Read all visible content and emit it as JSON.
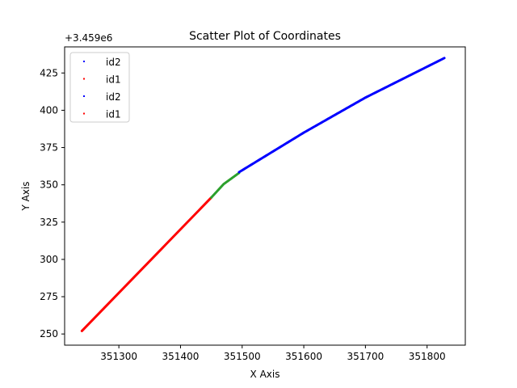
{
  "chart_data": {
    "type": "scatter",
    "title": "Scatter Plot of Coordinates",
    "xlabel": "X Axis",
    "ylabel": "Y Axis",
    "y_offset_label": "+3.459e6",
    "y_offset": 3459000,
    "xlim": [
      351212,
      351862
    ],
    "ylim": [
      242.5,
      442.5
    ],
    "xticks": [
      351300,
      351400,
      351500,
      351600,
      351700,
      351800
    ],
    "xtick_labels": [
      "351300",
      "351400",
      "351500",
      "351600",
      "351700",
      "351800"
    ],
    "yticks": [
      250,
      275,
      300,
      325,
      350,
      375,
      400,
      425
    ],
    "ytick_labels": [
      "250",
      "275",
      "300",
      "325",
      "350",
      "375",
      "400",
      "425"
    ],
    "grid": false,
    "legend_position": "top-left",
    "legend": [
      {
        "label": "id2",
        "color": "#0000ff"
      },
      {
        "label": "id1",
        "color": "#ff0000"
      },
      {
        "label": "id2",
        "color": "#0000ff"
      },
      {
        "label": "id1",
        "color": "#ff0000"
      }
    ],
    "series": [
      {
        "color": "#ff0000",
        "x": [
          351240,
          351270,
          351300,
          351330,
          351360,
          351390,
          351420,
          351450
        ],
        "y": [
          252,
          268.2,
          284.5,
          300.7,
          316.9,
          333.1,
          349.3,
          341.2
        ],
        "segments": [
          [
            351240,
            252
          ],
          [
            351450,
            341.5
          ]
        ]
      },
      {
        "color": "#2ca02c",
        "segments": [
          [
            351450,
            341.5
          ],
          [
            351470,
            350.5
          ],
          [
            351495,
            358
          ]
        ]
      },
      {
        "color": "#0000ff",
        "segments": [
          [
            351495,
            358.5
          ],
          [
            351600,
            385
          ],
          [
            351700,
            408.5
          ],
          [
            351828,
            435
          ]
        ]
      }
    ]
  }
}
